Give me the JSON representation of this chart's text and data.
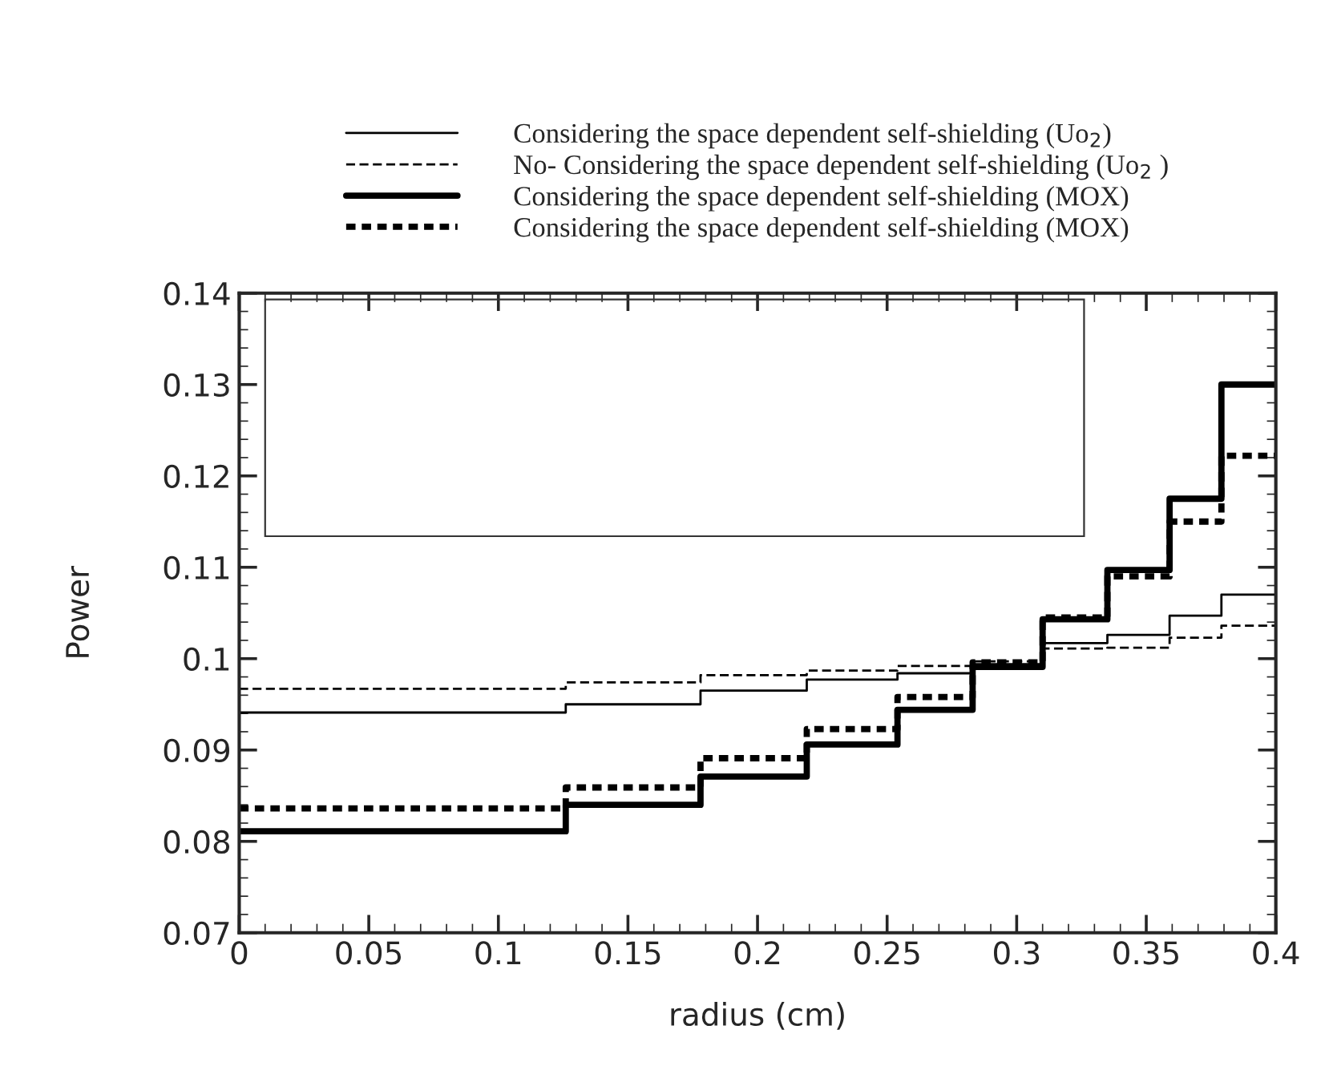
{
  "chart_data": {
    "type": "step",
    "xlabel": "radius (cm)",
    "ylabel": "Power",
    "x": [
      0,
      0.126,
      0.178,
      0.219,
      0.254,
      0.283,
      0.31,
      0.335,
      0.359,
      0.379,
      0.4
    ],
    "series": [
      {
        "name": "Considering the space dependent self-shielding (Uo$_{2}$)",
        "color": "#000000",
        "line_style": "solid",
        "values": [
          0.0941,
          0.095,
          0.0965,
          0.0977,
          0.0984,
          0.0994,
          0.1017,
          0.1026,
          0.1047,
          0.107,
          0.107
        ]
      },
      {
        "name": "No- Considering the space dependent self-shielding (Uo$_{2}$ )",
        "color": "#000000",
        "line_style": "dashed",
        "values": [
          0.0967,
          0.0974,
          0.0982,
          0.0987,
          0.0992,
          0.0997,
          0.1011,
          0.1012,
          0.1023,
          0.1036,
          0.1036
        ]
      },
      {
        "name": "Considering the space dependent self-shielding (MOX)",
        "color": "#000000",
        "line_style": "solid",
        "values": [
          0.0811,
          0.084,
          0.0871,
          0.0906,
          0.0944,
          0.0991,
          0.1043,
          0.1097,
          0.1175,
          0.13,
          0.13
        ]
      },
      {
        "name": "Considering the space dependent self-shielding (MOX)",
        "color": "#000000",
        "line_style": "dotted",
        "values": [
          0.0836,
          0.0859,
          0.0891,
          0.0923,
          0.0958,
          0.0996,
          0.1045,
          0.109,
          0.115,
          0.1222,
          0.1222
        ]
      }
    ],
    "xlim": [
      0,
      0.4
    ],
    "xticks": [
      0,
      0.05,
      0.1,
      0.15,
      0.2,
      0.25,
      0.3,
      0.35,
      0.4
    ],
    "ylim": [
      0.07,
      0.14
    ],
    "yticks": [
      0.07,
      0.08,
      0.09,
      0.1,
      0.11,
      0.12,
      0.13,
      0.14
    ],
    "grid": false,
    "legend": "top",
    "marker": "none"
  }
}
